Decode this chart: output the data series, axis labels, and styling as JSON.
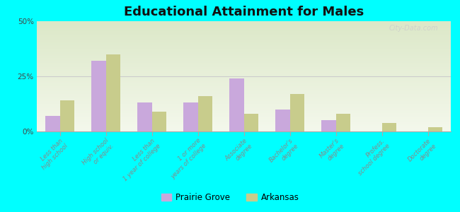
{
  "title": "Educational Attainment for Males",
  "categories": [
    "Less than\nhigh school",
    "High school\nor equiv.",
    "Less than\n1 year of college",
    "1 or more\nyears of college",
    "Associate\ndegree",
    "Bachelor's\ndegree",
    "Master's\ndegree",
    "Profess.\nschool degree",
    "Doctorate\ndegree"
  ],
  "prairie_grove": [
    7,
    32,
    13,
    13,
    24,
    10,
    5,
    0,
    0
  ],
  "arkansas": [
    14,
    35,
    9,
    16,
    8,
    17,
    8,
    4,
    2
  ],
  "prairie_grove_color": "#c9a8dc",
  "arkansas_color": "#c8cc8c",
  "background_color": "#00ffff",
  "ylim": [
    0,
    50
  ],
  "yticks": [
    0,
    25,
    50
  ],
  "ytick_labels": [
    "0%",
    "25%",
    "50%"
  ],
  "bar_width": 0.32,
  "legend_labels": [
    "Prairie Grove",
    "Arkansas"
  ],
  "title_fontsize": 13,
  "tick_fontsize": 6.0,
  "ytick_fontsize": 7.5,
  "grid_color": "#cccccc",
  "plot_bg_color": "#eef2e4"
}
